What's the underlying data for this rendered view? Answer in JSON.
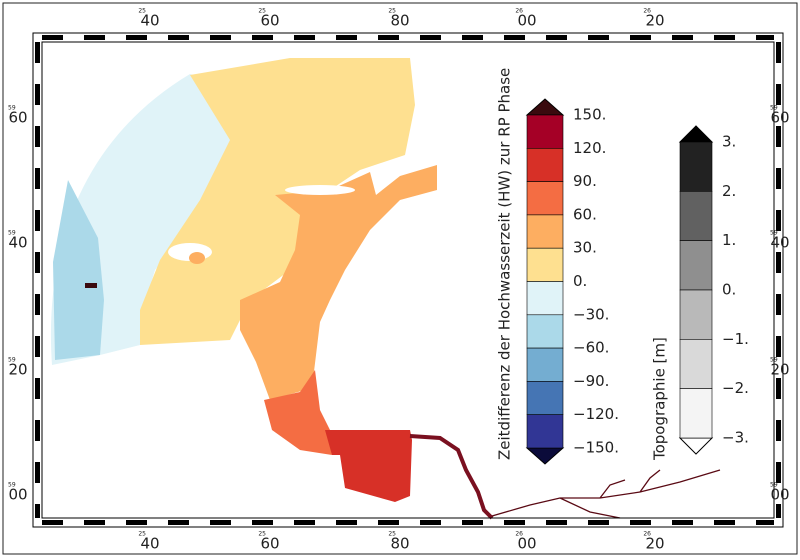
{
  "map": {
    "x_labels": [
      {
        "prefix": "25",
        "label": "40"
      },
      {
        "prefix": "25",
        "label": "60"
      },
      {
        "prefix": "25",
        "label": "80"
      },
      {
        "prefix": "26",
        "label": "00"
      },
      {
        "prefix": "26",
        "label": "20"
      }
    ],
    "y_labels": [
      {
        "prefix": "59",
        "label": "60"
      },
      {
        "prefix": "59",
        "label": "40"
      },
      {
        "prefix": "59",
        "label": "20"
      },
      {
        "prefix": "59",
        "label": "00"
      }
    ],
    "colorbars": [
      {
        "title": "Zeitdifferenz der Hochwasserzeit (HW) zur RP Phase",
        "labels": [
          "150.",
          "120.",
          "90.",
          "60.",
          "30.",
          "0.",
          "−30.",
          "−60.",
          "−90.",
          "−120.",
          "−150."
        ],
        "colors": [
          "#a50026",
          "#d73027",
          "#f46d43",
          "#fdae61",
          "#fee090",
          "#e0f3f8",
          "#abd9e9",
          "#74add1",
          "#4575b4",
          "#313695"
        ],
        "over_color": "#3a0a0e",
        "under_color": "#0b0b3a"
      },
      {
        "title": "Topographie [m]",
        "labels": [
          "3.",
          "2.",
          "1.",
          "0.",
          "−1.",
          "−2.",
          "−3."
        ],
        "colors": [
          "#222222",
          "#616161",
          "#8f8f8f",
          "#b9b9b9",
          "#d9d9d9",
          "#f4f4f4"
        ],
        "over_color": "#000000",
        "under_color": "#ffffff"
      }
    ]
  }
}
